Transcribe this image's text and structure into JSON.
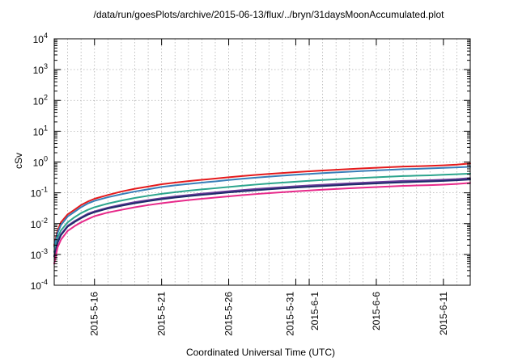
{
  "chart_data": {
    "type": "line",
    "title": "/data/run/goesPlots/archive/2015-06-13/flux/../bryn/31daysMoonAccumulated.plot",
    "xlabel": "Coordinated Universal Time (UTC)",
    "ylabel": "cSv",
    "yscale": "log",
    "ylim": [
      0.0001,
      10000
    ],
    "xlim_days": [
      0,
      31
    ],
    "grid": true,
    "y_ticks": [
      {
        "value": 0.0001,
        "base": "10",
        "exp": "-4"
      },
      {
        "value": 0.001,
        "base": "10",
        "exp": "-3"
      },
      {
        "value": 0.01,
        "base": "10",
        "exp": "-2"
      },
      {
        "value": 0.1,
        "base": "10",
        "exp": "-1"
      },
      {
        "value": 1,
        "base": "10",
        "exp": "0"
      },
      {
        "value": 10,
        "base": "10",
        "exp": "1"
      },
      {
        "value": 100,
        "base": "10",
        "exp": "2"
      },
      {
        "value": 1000,
        "base": "10",
        "exp": "3"
      },
      {
        "value": 10000,
        "base": "10",
        "exp": "4"
      }
    ],
    "x_ticks": [
      {
        "day": 3,
        "label": "2015-5-16"
      },
      {
        "day": 8,
        "label": "2015-5-21"
      },
      {
        "day": 13,
        "label": "2015-5-26"
      },
      {
        "day": 18,
        "label": "2015-5-31"
      },
      {
        "day": 19,
        "label": "2015-6-1"
      },
      {
        "day": 24,
        "label": "2015-6-6"
      },
      {
        "day": 29,
        "label": "2015-6-11"
      }
    ],
    "x_minor_grid_days": [
      0,
      1,
      2,
      3,
      4,
      5,
      6,
      7,
      8,
      9,
      10,
      11,
      12,
      13,
      14,
      15,
      16,
      17,
      18,
      19,
      20,
      21,
      22,
      23,
      24,
      25,
      26,
      27,
      28,
      29,
      30,
      31
    ],
    "x": [
      0,
      0.25,
      0.5,
      1,
      1.5,
      2,
      2.5,
      3,
      4,
      5,
      6,
      7,
      8,
      9,
      10,
      11,
      12,
      13,
      14,
      15,
      16,
      17,
      18,
      19,
      20,
      21,
      22,
      23,
      24,
      25,
      26,
      27,
      28,
      29,
      30,
      31
    ],
    "series": [
      {
        "name": "red",
        "color": "#e41a1c",
        "values": [
          0.002,
          0.006,
          0.011,
          0.02,
          0.028,
          0.04,
          0.052,
          0.064,
          0.085,
          0.11,
          0.135,
          0.16,
          0.19,
          0.215,
          0.24,
          0.265,
          0.29,
          0.32,
          0.35,
          0.38,
          0.41,
          0.44,
          0.47,
          0.5,
          0.53,
          0.56,
          0.59,
          0.62,
          0.65,
          0.68,
          0.71,
          0.73,
          0.75,
          0.78,
          0.82,
          0.9
        ]
      },
      {
        "name": "blue",
        "color": "#377eb8",
        "values": [
          0.0018,
          0.005,
          0.009,
          0.017,
          0.024,
          0.034,
          0.045,
          0.055,
          0.072,
          0.09,
          0.11,
          0.13,
          0.155,
          0.175,
          0.195,
          0.215,
          0.235,
          0.26,
          0.285,
          0.31,
          0.335,
          0.36,
          0.385,
          0.41,
          0.435,
          0.46,
          0.485,
          0.51,
          0.535,
          0.56,
          0.585,
          0.6,
          0.62,
          0.645,
          0.67,
          0.7
        ]
      },
      {
        "name": "green",
        "color": "#2ca58d",
        "values": [
          0.0012,
          0.0035,
          0.006,
          0.011,
          0.016,
          0.022,
          0.028,
          0.034,
          0.045,
          0.056,
          0.068,
          0.08,
          0.093,
          0.105,
          0.117,
          0.129,
          0.141,
          0.155,
          0.17,
          0.185,
          0.2,
          0.215,
          0.23,
          0.245,
          0.26,
          0.275,
          0.29,
          0.305,
          0.32,
          0.335,
          0.35,
          0.36,
          0.37,
          0.385,
          0.4,
          0.42
        ]
      },
      {
        "name": "purple",
        "color": "#6a3d9a",
        "values": [
          0.0009,
          0.0026,
          0.0045,
          0.0085,
          0.012,
          0.016,
          0.021,
          0.025,
          0.033,
          0.041,
          0.05,
          0.058,
          0.067,
          0.076,
          0.085,
          0.094,
          0.103,
          0.113,
          0.123,
          0.133,
          0.143,
          0.153,
          0.163,
          0.173,
          0.183,
          0.193,
          0.203,
          0.213,
          0.223,
          0.233,
          0.243,
          0.25,
          0.257,
          0.267,
          0.28,
          0.3
        ]
      },
      {
        "name": "navy",
        "color": "#1f2a6b",
        "values": [
          0.00085,
          0.0024,
          0.0042,
          0.008,
          0.0112,
          0.015,
          0.0195,
          0.0235,
          0.031,
          0.038,
          0.046,
          0.054,
          0.062,
          0.07,
          0.078,
          0.086,
          0.094,
          0.103,
          0.112,
          0.121,
          0.13,
          0.139,
          0.148,
          0.157,
          0.166,
          0.175,
          0.184,
          0.193,
          0.202,
          0.211,
          0.22,
          0.227,
          0.234,
          0.243,
          0.255,
          0.27
        ]
      },
      {
        "name": "magenta",
        "color": "#e7298a",
        "values": [
          0.0005,
          0.0017,
          0.003,
          0.0058,
          0.0082,
          0.011,
          0.014,
          0.0175,
          0.023,
          0.028,
          0.034,
          0.04,
          0.046,
          0.052,
          0.058,
          0.064,
          0.07,
          0.077,
          0.084,
          0.091,
          0.098,
          0.105,
          0.112,
          0.119,
          0.126,
          0.133,
          0.14,
          0.147,
          0.154,
          0.161,
          0.168,
          0.173,
          0.178,
          0.185,
          0.195,
          0.21
        ]
      }
    ]
  }
}
